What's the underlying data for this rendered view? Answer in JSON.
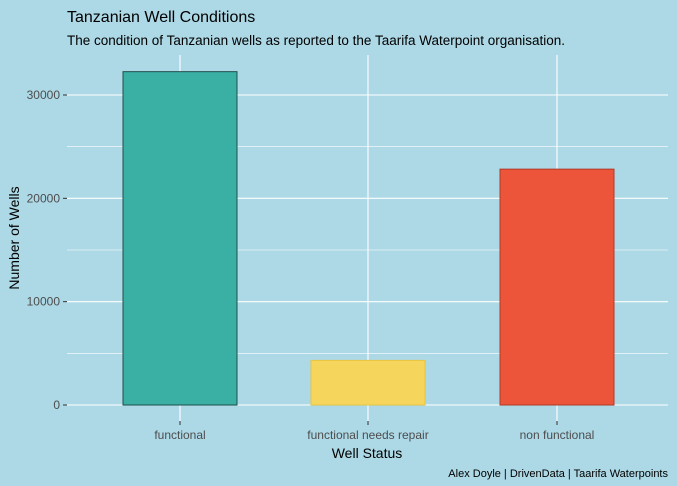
{
  "chart_data": {
    "type": "bar",
    "title": "Tanzanian Well Conditions",
    "subtitle": "The condition of Tanzanian wells as reported to the Taarifa Waterpoint organisation.",
    "xlabel": "Well Status",
    "ylabel": "Number of Wells",
    "caption": "Alex Doyle | DrivenData | Taarifa Waterpoints",
    "categories": [
      "functional",
      "functional needs repair",
      "non functional"
    ],
    "values": [
      32259,
      4317,
      22824
    ],
    "colors": [
      "#3aafa3",
      "#f6d55c",
      "#ed553b"
    ],
    "border_colors": [
      "#1f4f4a",
      "#e8c53f",
      "#b03a25"
    ],
    "ylim": [
      0,
      33800
    ],
    "yticks": [
      0,
      10000,
      20000,
      30000
    ],
    "grid": true,
    "legend": "none",
    "background": "#add8e6",
    "grid_color": "#ffffff"
  }
}
